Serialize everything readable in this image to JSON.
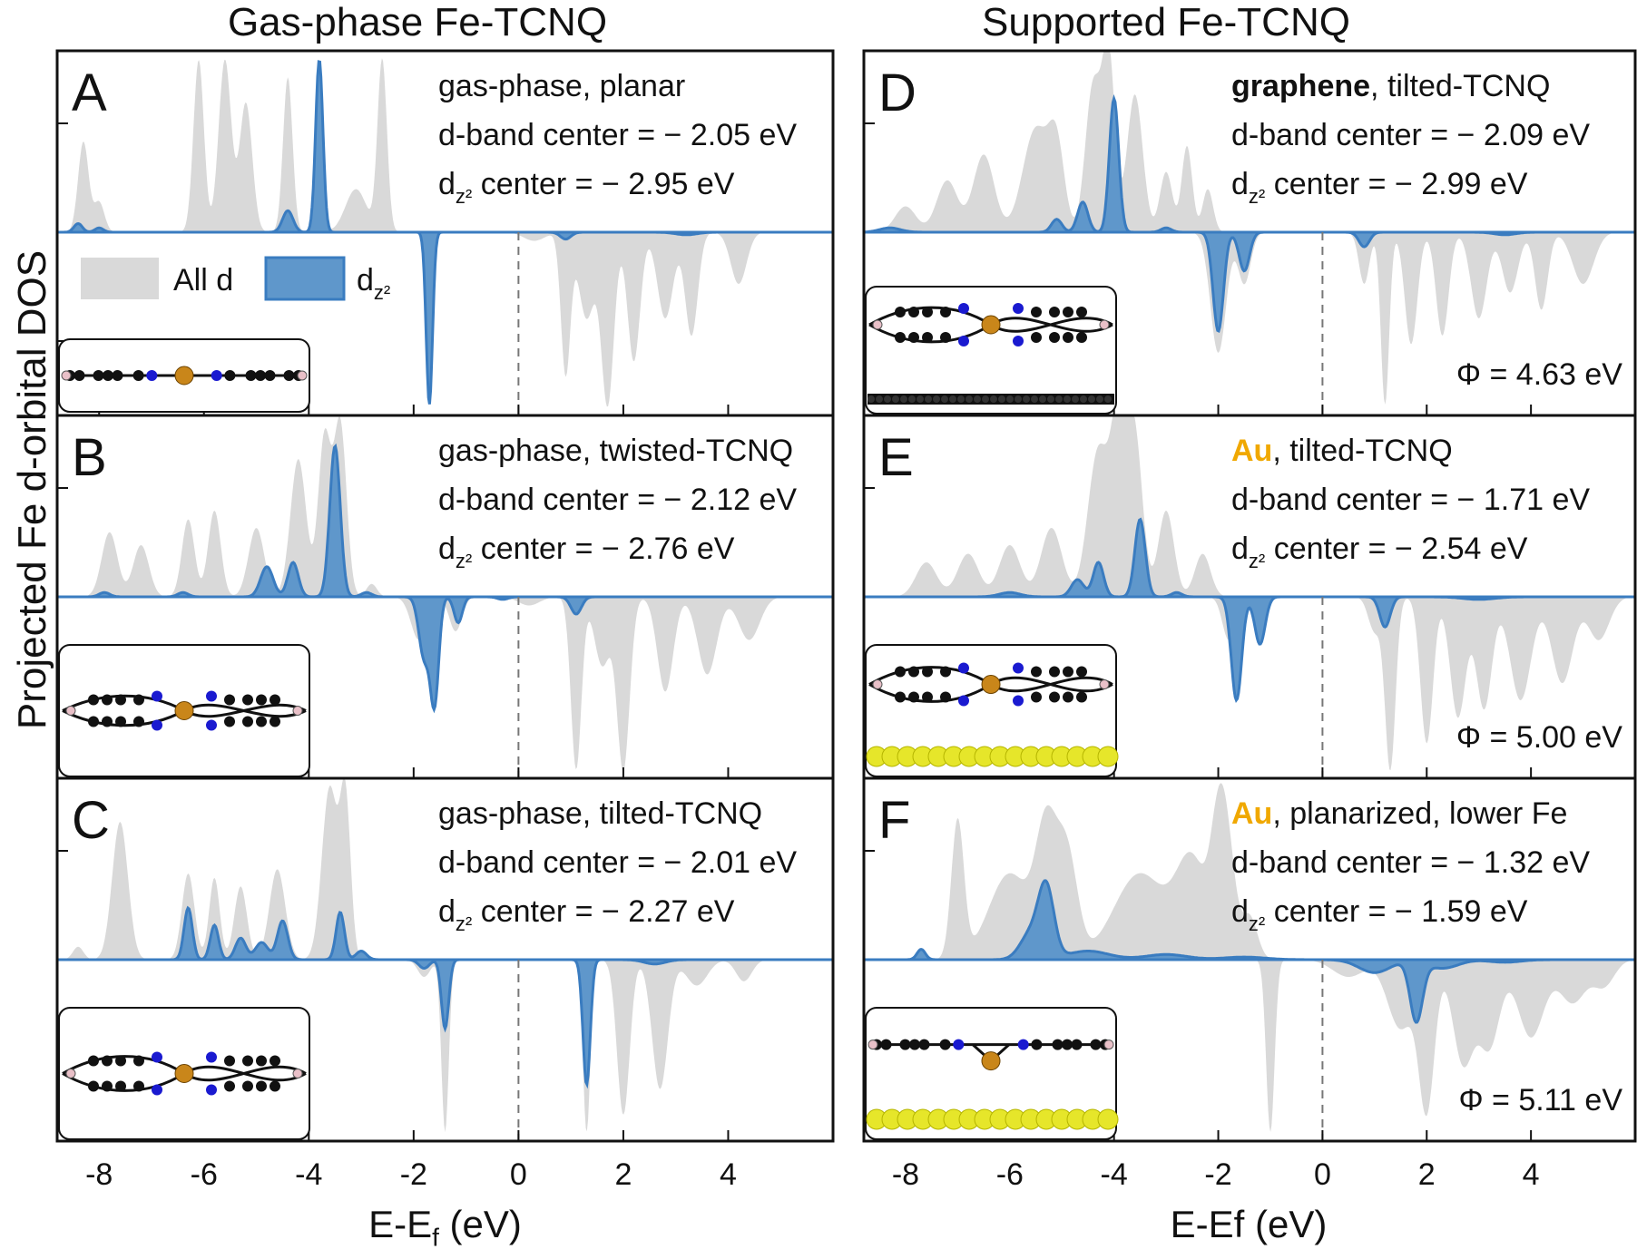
{
  "titles": {
    "left": "Gas-phase Fe-TCNQ",
    "right": "Supported Fe-TCNQ"
  },
  "ylabel": "Projected Fe d-orbital DOS",
  "xlabels": {
    "left": "E-E",
    "left_sub": "f",
    "left_unit": " (eV)",
    "right": "E-Ef (eV)"
  },
  "legend": {
    "all_d": "All d",
    "dz2": "d",
    "dz2_sub": "z²"
  },
  "colors": {
    "all_d": "#d9d9d9",
    "dz2_fill": "#5f97cb",
    "dz2_line": "#3a7cc0",
    "substrate_au": "#e6e62a",
    "au_text": "#f0a800"
  },
  "chart_data": [
    {
      "type": "area",
      "panel": "A",
      "xlim": [
        -8.8,
        6.0
      ],
      "xticks": [
        -8,
        -6,
        -4,
        -2,
        0,
        2,
        4
      ],
      "lines": [
        "gas-phase, planar",
        "d-band center = − 2.05 eV",
        "center = − 2.95 eV"
      ],
      "substrate": "none",
      "geometry": "planar",
      "show_legend": true,
      "phi": "",
      "all_up": [
        [
          -8.3,
          1.05,
          0.1
        ],
        [
          -8.0,
          0.35,
          0.1
        ],
        [
          -6.1,
          2.0,
          0.1
        ],
        [
          -5.6,
          2.0,
          0.12
        ],
        [
          -5.2,
          1.5,
          0.12
        ],
        [
          -4.4,
          1.8,
          0.09
        ],
        [
          -3.8,
          2.0,
          0.07
        ],
        [
          -2.6,
          2.0,
          0.09
        ],
        [
          -3.1,
          0.5,
          0.2
        ]
      ],
      "all_dn": [
        [
          -1.7,
          2.0,
          0.06
        ],
        [
          0.9,
          1.65,
          0.09
        ],
        [
          1.3,
          1.0,
          0.15
        ],
        [
          1.7,
          2.0,
          0.12
        ],
        [
          2.2,
          1.5,
          0.12
        ],
        [
          2.8,
          1.0,
          0.15
        ],
        [
          3.3,
          1.2,
          0.12
        ],
        [
          4.2,
          0.6,
          0.15
        ],
        [
          0.3,
          0.1,
          0.2
        ]
      ],
      "dz_up": [
        [
          -8.4,
          0.1,
          0.08
        ],
        [
          -8.0,
          0.05,
          0.08
        ],
        [
          -4.4,
          0.25,
          0.1
        ],
        [
          -3.8,
          2.0,
          0.07
        ]
      ],
      "dz_dn": [
        [
          -1.7,
          2.0,
          0.06
        ],
        [
          0.9,
          0.08,
          0.1
        ],
        [
          3.2,
          0.03,
          0.2
        ]
      ]
    },
    {
      "type": "area",
      "panel": "B",
      "xlim": [
        -8.8,
        6.0
      ],
      "xticks": [
        -8,
        -6,
        -4,
        -2,
        0,
        2,
        4
      ],
      "lines": [
        "gas-phase, twisted-TCNQ",
        "d-band center = − 2.12 eV",
        "center = − 2.76 eV"
      ],
      "substrate": "none",
      "geometry": "twisted",
      "show_legend": false,
      "phi": "",
      "all_up": [
        [
          -7.8,
          0.75,
          0.15
        ],
        [
          -7.2,
          0.6,
          0.15
        ],
        [
          -6.3,
          0.9,
          0.12
        ],
        [
          -5.8,
          1.0,
          0.12
        ],
        [
          -5.0,
          0.8,
          0.15
        ],
        [
          -4.2,
          1.6,
          0.15
        ],
        [
          -3.7,
          1.85,
          0.12
        ],
        [
          -3.4,
          2.0,
          0.12
        ],
        [
          -2.8,
          0.15,
          0.1
        ]
      ],
      "all_dn": [
        [
          -1.9,
          0.5,
          0.15
        ],
        [
          -1.2,
          0.4,
          0.12
        ],
        [
          0.2,
          0.1,
          0.2
        ],
        [
          1.1,
          2.0,
          0.1
        ],
        [
          1.6,
          0.8,
          0.15
        ],
        [
          2.0,
          2.0,
          0.12
        ],
        [
          2.8,
          1.1,
          0.15
        ],
        [
          3.6,
          0.9,
          0.18
        ],
        [
          4.4,
          0.5,
          0.2
        ]
      ],
      "dz_up": [
        [
          -7.9,
          0.05,
          0.1
        ],
        [
          -6.4,
          0.05,
          0.1
        ],
        [
          -4.8,
          0.35,
          0.12
        ],
        [
          -4.3,
          0.4,
          0.1
        ],
        [
          -3.5,
          1.75,
          0.1
        ],
        [
          -2.9,
          0.05,
          0.1
        ]
      ],
      "dz_dn": [
        [
          -1.8,
          0.7,
          0.1
        ],
        [
          -1.6,
          1.2,
          0.08
        ],
        [
          -1.15,
          0.3,
          0.08
        ],
        [
          1.1,
          0.2,
          0.1
        ],
        [
          -0.3,
          0.03,
          0.1
        ]
      ]
    },
    {
      "type": "area",
      "panel": "C",
      "xlim": [
        -8.8,
        6.0
      ],
      "xticks": [
        -8,
        -6,
        -4,
        -2,
        0,
        2,
        4
      ],
      "lines": [
        "gas-phase, tilted-TCNQ",
        "d-band center = − 2.01 eV",
        "center = − 2.27 eV"
      ],
      "substrate": "none",
      "geometry": "tilted",
      "show_legend": false,
      "phi": "",
      "all_up": [
        [
          -7.6,
          1.6,
          0.15
        ],
        [
          -6.3,
          1.0,
          0.12
        ],
        [
          -5.8,
          0.95,
          0.1
        ],
        [
          -5.3,
          0.85,
          0.12
        ],
        [
          -4.6,
          1.05,
          0.15
        ],
        [
          -3.6,
          2.0,
          0.15
        ],
        [
          -3.3,
          1.8,
          0.1
        ],
        [
          -8.4,
          0.15,
          0.1
        ]
      ],
      "all_dn": [
        [
          -1.8,
          0.2,
          0.12
        ],
        [
          -1.4,
          2.0,
          0.07
        ],
        [
          1.3,
          2.0,
          0.07
        ],
        [
          2.0,
          1.8,
          0.12
        ],
        [
          2.7,
          1.5,
          0.15
        ],
        [
          3.4,
          0.3,
          0.2
        ],
        [
          4.3,
          0.25,
          0.15
        ]
      ],
      "dz_up": [
        [
          -6.3,
          0.6,
          0.08
        ],
        [
          -5.8,
          0.4,
          0.08
        ],
        [
          -5.3,
          0.25,
          0.1
        ],
        [
          -4.9,
          0.2,
          0.12
        ],
        [
          -4.5,
          0.45,
          0.1
        ],
        [
          -3.4,
          0.55,
          0.08
        ],
        [
          -3.0,
          0.1,
          0.1
        ]
      ],
      "dz_dn": [
        [
          -1.8,
          0.1,
          0.1
        ],
        [
          -1.4,
          0.8,
          0.07
        ],
        [
          1.3,
          1.45,
          0.07
        ],
        [
          2.6,
          0.05,
          0.2
        ]
      ]
    },
    {
      "type": "area",
      "panel": "D",
      "xlim": [
        -8.8,
        6.0
      ],
      "xticks": [
        -8,
        -6,
        -4,
        -2,
        0,
        2,
        4
      ],
      "lines": [
        "graphene, tilted-TCNQ",
        "d-band center = − 2.09 eV",
        "center = − 2.99 eV"
      ],
      "bold_word": "graphene",
      "rest": ", tilted-TCNQ",
      "substrate": "graphene",
      "geometry": "tilted",
      "show_legend": false,
      "phi": "Φ = 4.63 eV",
      "all_up": [
        [
          -7.2,
          0.6,
          0.2
        ],
        [
          -6.5,
          0.9,
          0.2
        ],
        [
          -5.5,
          1.2,
          0.25
        ],
        [
          -5.1,
          0.9,
          0.15
        ],
        [
          -4.4,
          1.7,
          0.15
        ],
        [
          -4.1,
          2.0,
          0.12
        ],
        [
          -3.6,
          1.6,
          0.15
        ],
        [
          -3.0,
          0.7,
          0.12
        ],
        [
          -2.6,
          1.0,
          0.1
        ],
        [
          -2.2,
          0.5,
          0.1
        ],
        [
          -8.0,
          0.3,
          0.2
        ]
      ],
      "all_dn": [
        [
          -2.0,
          1.4,
          0.15
        ],
        [
          -1.5,
          0.6,
          0.12
        ],
        [
          0.8,
          0.6,
          0.1
        ],
        [
          1.2,
          2.0,
          0.08
        ],
        [
          1.7,
          1.3,
          0.12
        ],
        [
          2.3,
          1.2,
          0.12
        ],
        [
          3.0,
          1.0,
          0.15
        ],
        [
          3.6,
          0.7,
          0.15
        ],
        [
          4.2,
          0.9,
          0.12
        ],
        [
          5.0,
          0.6,
          0.2
        ]
      ],
      "dz_up": [
        [
          -8.3,
          0.05,
          0.2
        ],
        [
          -5.1,
          0.15,
          0.1
        ],
        [
          -4.6,
          0.35,
          0.1
        ],
        [
          -4.0,
          1.55,
          0.09
        ],
        [
          -3.0,
          0.05,
          0.1
        ]
      ],
      "dz_dn": [
        [
          -2.0,
          1.15,
          0.1
        ],
        [
          -1.5,
          0.45,
          0.1
        ],
        [
          0.8,
          0.17,
          0.1
        ],
        [
          3.5,
          0.03,
          0.2
        ]
      ]
    },
    {
      "type": "area",
      "panel": "E",
      "xlim": [
        -8.8,
        6.0
      ],
      "xticks": [
        -8,
        -6,
        -4,
        -2,
        0,
        2,
        4
      ],
      "lines": [
        "Au, tilted-TCNQ",
        "d-band center = − 1.71 eV",
        "center = − 2.54 eV"
      ],
      "colored_word": "Au",
      "rest": ", tilted-TCNQ",
      "substrate": "gold",
      "geometry": "tilted",
      "show_legend": false,
      "phi": "Φ = 5.00 eV",
      "all_up": [
        [
          -7.6,
          0.4,
          0.2
        ],
        [
          -6.8,
          0.5,
          0.2
        ],
        [
          -6.0,
          0.6,
          0.2
        ],
        [
          -5.2,
          0.8,
          0.2
        ],
        [
          -4.3,
          1.7,
          0.2
        ],
        [
          -3.9,
          2.0,
          0.15
        ],
        [
          -3.6,
          1.8,
          0.15
        ],
        [
          -3.0,
          1.0,
          0.15
        ],
        [
          -2.3,
          0.5,
          0.15
        ]
      ],
      "all_dn": [
        [
          -1.8,
          0.5,
          0.12
        ],
        [
          -1.2,
          0.4,
          0.12
        ],
        [
          1.0,
          0.4,
          0.12
        ],
        [
          1.3,
          2.0,
          0.1
        ],
        [
          2.0,
          1.7,
          0.12
        ],
        [
          2.6,
          1.4,
          0.15
        ],
        [
          3.1,
          1.3,
          0.15
        ],
        [
          3.8,
          1.2,
          0.2
        ],
        [
          4.6,
          1.0,
          0.2
        ],
        [
          5.3,
          0.5,
          0.2
        ]
      ],
      "dz_up": [
        [
          -6.0,
          0.05,
          0.2
        ],
        [
          -4.7,
          0.2,
          0.12
        ],
        [
          -4.3,
          0.4,
          0.1
        ],
        [
          -3.5,
          0.9,
          0.1
        ],
        [
          -2.8,
          0.05,
          0.1
        ]
      ],
      "dz_dn": [
        [
          -1.65,
          1.2,
          0.1
        ],
        [
          -1.2,
          0.55,
          0.1
        ],
        [
          1.2,
          0.35,
          0.1
        ],
        [
          3.0,
          0.03,
          0.3
        ]
      ]
    },
    {
      "type": "area",
      "panel": "F",
      "xlim": [
        -8.8,
        6.0
      ],
      "xticks": [
        -8,
        -6,
        -4,
        -2,
        0,
        2,
        4
      ],
      "lines": [
        "Au, planarized, lower Fe",
        "d-band center = − 1.32 eV",
        "center = − 1.59 eV"
      ],
      "colored_word": "Au",
      "rest": ", planarized, lower Fe",
      "substrate": "gold",
      "geometry": "lower",
      "show_legend": false,
      "phi": "Φ = 5.11 eV",
      "all_up": [
        [
          -7.0,
          1.6,
          0.12
        ],
        [
          -6.0,
          1.0,
          0.4
        ],
        [
          -5.3,
          1.4,
          0.2
        ],
        [
          -4.9,
          1.2,
          0.2
        ],
        [
          -3.5,
          1.0,
          0.5
        ],
        [
          -2.5,
          1.1,
          0.3
        ],
        [
          -2.0,
          1.3,
          0.15
        ],
        [
          -1.8,
          1.0,
          0.15
        ],
        [
          -1.4,
          0.5,
          0.15
        ]
      ],
      "all_dn": [
        [
          -1.0,
          2.0,
          0.08
        ],
        [
          0.5,
          0.2,
          0.3
        ],
        [
          1.5,
          0.8,
          0.25
        ],
        [
          2.0,
          1.7,
          0.15
        ],
        [
          2.7,
          1.2,
          0.2
        ],
        [
          3.2,
          1.0,
          0.2
        ],
        [
          4.0,
          0.9,
          0.25
        ],
        [
          4.8,
          0.5,
          0.25
        ],
        [
          5.4,
          0.3,
          0.2
        ]
      ],
      "dz_up": [
        [
          -7.7,
          0.12,
          0.08
        ],
        [
          -5.3,
          0.8,
          0.15
        ],
        [
          -5.6,
          0.3,
          0.2
        ],
        [
          -4.5,
          0.1,
          0.4
        ],
        [
          -3.0,
          0.06,
          0.4
        ],
        [
          -1.5,
          0.03,
          0.4
        ]
      ],
      "dz_dn": [
        [
          1.0,
          0.15,
          0.3
        ],
        [
          1.8,
          0.7,
          0.12
        ],
        [
          2.3,
          0.1,
          0.3
        ],
        [
          3.5,
          0.03,
          0.3
        ]
      ]
    }
  ]
}
